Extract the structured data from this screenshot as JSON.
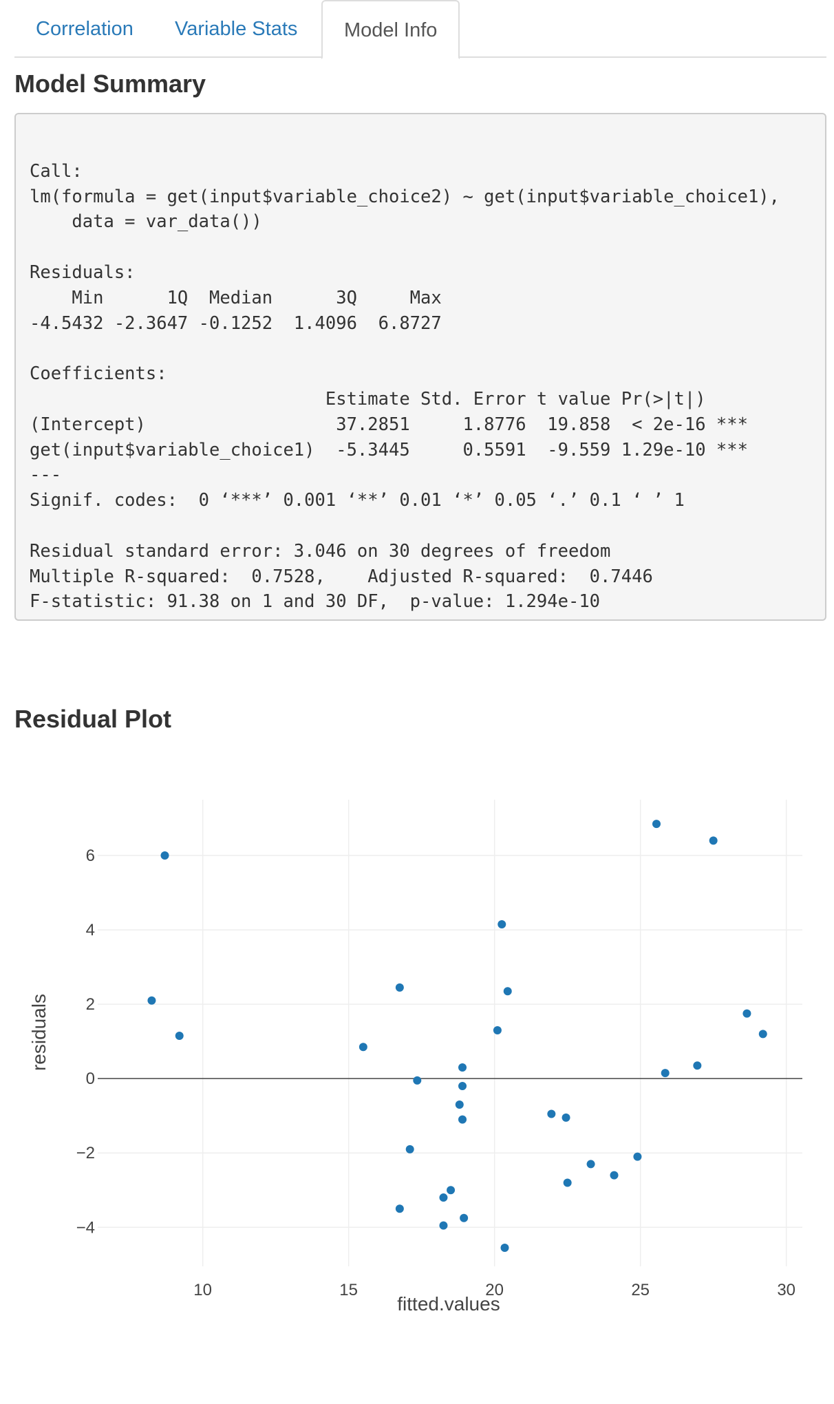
{
  "tabs": [
    {
      "label": "Correlation"
    },
    {
      "label": "Variable Stats"
    },
    {
      "label": "Model Info",
      "active": true
    }
  ],
  "model_summary": {
    "title": "Model Summary",
    "text": "\nCall:\nlm(formula = get(input$variable_choice2) ~ get(input$variable_choice1), \n    data = var_data())\n\nResiduals:\n    Min      1Q  Median      3Q     Max \n-4.5432 -2.3647 -0.1252  1.4096  6.8727 \n\nCoefficients:\n                            Estimate Std. Error t value Pr(>|t|)    \n(Intercept)                  37.2851     1.8776  19.858  < 2e-16 ***\nget(input$variable_choice1)  -5.3445     0.5591  -9.559 1.29e-10 ***\n---\nSignif. codes:  0 ‘***’ 0.001 ‘**’ 0.01 ‘*’ 0.05 ‘.’ 0.1 ‘ ’ 1\n\nResidual standard error: 3.046 on 30 degrees of freedom\nMultiple R-squared:  0.7528,\tAdjusted R-squared:  0.7446 \nF-statistic: 91.38 on 1 and 30 DF,  p-value: 1.294e-10"
  },
  "residual_plot": {
    "title": "Residual Plot"
  },
  "chart_data": {
    "type": "scatter",
    "title": "",
    "xlabel": "fitted.values",
    "ylabel": "residuals",
    "xlim": [
      6.4,
      30.55
    ],
    "ylim": [
      -5.05,
      7.5
    ],
    "x_ticks": [
      10,
      15,
      20,
      25,
      30
    ],
    "y_ticks": [
      -4,
      -2,
      0,
      2,
      4,
      6
    ],
    "grid": true,
    "zero_line": true,
    "marker_color": "#1f77b4",
    "points": [
      {
        "x": 8.7,
        "y": 6.0
      },
      {
        "x": 8.25,
        "y": 2.1
      },
      {
        "x": 9.2,
        "y": 1.15
      },
      {
        "x": 15.5,
        "y": 0.85
      },
      {
        "x": 16.75,
        "y": 2.45
      },
      {
        "x": 17.35,
        "y": -0.05
      },
      {
        "x": 17.1,
        "y": -1.9
      },
      {
        "x": 16.75,
        "y": -3.5
      },
      {
        "x": 18.25,
        "y": -3.2
      },
      {
        "x": 18.5,
        "y": -3.0
      },
      {
        "x": 18.25,
        "y": -3.95
      },
      {
        "x": 18.95,
        "y": -3.75
      },
      {
        "x": 18.8,
        "y": -0.7
      },
      {
        "x": 18.9,
        "y": -0.2
      },
      {
        "x": 18.9,
        "y": 0.3
      },
      {
        "x": 18.9,
        "y": -1.1
      },
      {
        "x": 20.1,
        "y": 1.3
      },
      {
        "x": 20.25,
        "y": 4.15
      },
      {
        "x": 20.45,
        "y": 2.35
      },
      {
        "x": 20.35,
        "y": -4.55
      },
      {
        "x": 21.95,
        "y": -0.95
      },
      {
        "x": 22.45,
        "y": -1.05
      },
      {
        "x": 22.5,
        "y": -2.8
      },
      {
        "x": 23.3,
        "y": -2.3
      },
      {
        "x": 24.1,
        "y": -2.6
      },
      {
        "x": 24.9,
        "y": -2.1
      },
      {
        "x": 25.55,
        "y": 6.85
      },
      {
        "x": 25.85,
        "y": 0.15
      },
      {
        "x": 26.95,
        "y": 0.35
      },
      {
        "x": 27.5,
        "y": 6.4
      },
      {
        "x": 28.65,
        "y": 1.75
      },
      {
        "x": 29.2,
        "y": 1.2
      }
    ]
  }
}
